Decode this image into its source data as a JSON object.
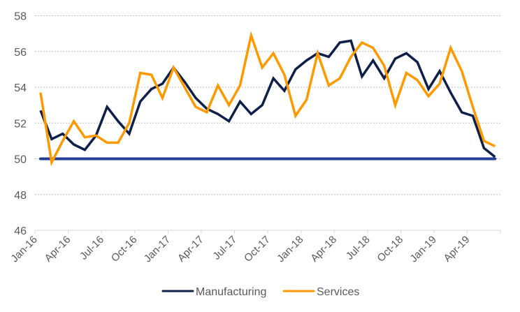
{
  "chart_data": {
    "type": "line",
    "title": "",
    "xlabel": "",
    "ylabel": "",
    "ylim": [
      46,
      58
    ],
    "yticks": [
      46,
      48,
      50,
      52,
      54,
      56,
      58
    ],
    "grid": true,
    "legend_position": "bottom-center",
    "x": [
      "Jan-16",
      "Feb-16",
      "Mar-16",
      "Apr-16",
      "May-16",
      "Jun-16",
      "Jul-16",
      "Aug-16",
      "Sep-16",
      "Oct-16",
      "Nov-16",
      "Dec-16",
      "Jan-17",
      "Feb-17",
      "Mar-17",
      "Apr-17",
      "May-17",
      "Jun-17",
      "Jul-17",
      "Aug-17",
      "Sep-17",
      "Oct-17",
      "Nov-17",
      "Dec-17",
      "Jan-18",
      "Feb-18",
      "Mar-18",
      "Apr-18",
      "May-18",
      "Jun-18",
      "Jul-18",
      "Aug-18",
      "Sep-18",
      "Oct-18",
      "Nov-18",
      "Dec-18",
      "Jan-19",
      "Feb-19",
      "Mar-19",
      "Apr-19",
      "May-19",
      "Jun-19"
    ],
    "xtick_labels": [
      "Jan-16",
      "Apr-16",
      "Jul-16",
      "Oct-16",
      "Jan-17",
      "Apr-17",
      "Jul-17",
      "Oct-17",
      "Jan-18",
      "Apr-18",
      "Jul-18",
      "Oct-18",
      "Jan-19",
      "Apr-19"
    ],
    "series": [
      {
        "name": "Manufacturing",
        "color": "#0e1f4a",
        "values": [
          52.7,
          51.1,
          51.4,
          50.8,
          50.5,
          51.3,
          52.9,
          52.1,
          51.4,
          53.2,
          53.9,
          54.2,
          55.1,
          54.3,
          53.4,
          52.8,
          52.5,
          52.1,
          53.2,
          52.5,
          53.0,
          54.5,
          53.8,
          55.0,
          55.5,
          55.9,
          55.7,
          56.5,
          56.6,
          54.6,
          55.5,
          54.5,
          55.6,
          55.9,
          55.4,
          53.9,
          54.9,
          53.7,
          52.6,
          52.4,
          50.6,
          50.1
        ]
      },
      {
        "name": "Services",
        "color": "#ff9900",
        "values": [
          53.7,
          49.8,
          51.0,
          52.1,
          51.2,
          51.3,
          50.9,
          50.9,
          52.0,
          54.8,
          54.7,
          53.4,
          55.1,
          54.0,
          52.9,
          52.6,
          54.1,
          53.0,
          54.1,
          56.9,
          55.1,
          55.9,
          54.7,
          52.4,
          53.3,
          55.9,
          54.1,
          54.5,
          55.7,
          56.5,
          56.2,
          55.2,
          53.0,
          54.8,
          54.4,
          53.5,
          54.2,
          56.2,
          54.9,
          52.9,
          51.0,
          50.7
        ]
      }
    ],
    "reference_line": {
      "value": 50,
      "color": "#233e93",
      "label": ""
    }
  }
}
